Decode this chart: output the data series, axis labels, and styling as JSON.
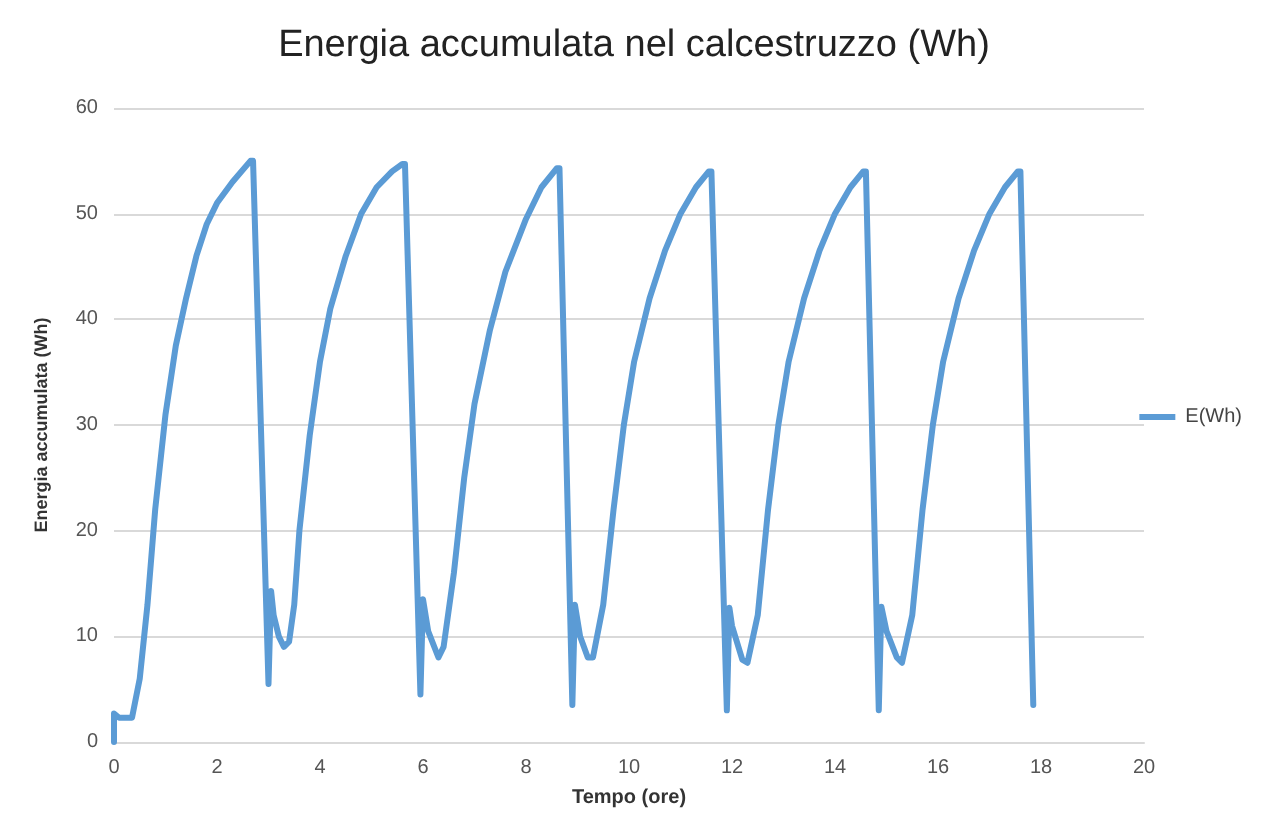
{
  "chart_data": {
    "type": "line",
    "title": "Energia accumulata nel calcestruzzo (Wh)",
    "xlabel": "Tempo (ore)",
    "ylabel": "Energia accumulata (Wh)",
    "xlim": [
      0,
      20
    ],
    "xticks": [
      0,
      2,
      4,
      6,
      8,
      10,
      12,
      14,
      16,
      18,
      20
    ],
    "ylim": [
      0,
      60
    ],
    "yticks": [
      0,
      10,
      20,
      30,
      40,
      50,
      60
    ],
    "grid": "y",
    "legend": "right",
    "marker": "none",
    "line_style": "solid",
    "series": [
      {
        "name": "E(Wh)",
        "color": "#5b9bd5",
        "x": [
          0,
          0,
          0.1,
          0.35,
          0.5,
          0.65,
          0.8,
          1.0,
          1.2,
          1.4,
          1.6,
          1.8,
          2.0,
          2.3,
          2.65,
          2.7,
          3.0,
          3.05,
          3.1,
          3.2,
          3.3,
          3.4,
          3.5,
          3.6,
          3.8,
          4.0,
          4.2,
          4.5,
          4.8,
          5.1,
          5.4,
          5.6,
          5.65,
          5.95,
          6.0,
          6.1,
          6.3,
          6.4,
          6.6,
          6.8,
          7.0,
          7.3,
          7.6,
          8.0,
          8.3,
          8.6,
          8.65,
          8.9,
          8.95,
          9.05,
          9.2,
          9.3,
          9.5,
          9.7,
          9.9,
          10.1,
          10.4,
          10.7,
          11.0,
          11.3,
          11.55,
          11.6,
          11.9,
          11.95,
          12.0,
          12.2,
          12.3,
          12.5,
          12.7,
          12.9,
          13.1,
          13.4,
          13.7,
          14.0,
          14.3,
          14.55,
          14.6,
          14.85,
          14.9,
          15.0,
          15.2,
          15.3,
          15.5,
          15.7,
          15.9,
          16.1,
          16.4,
          16.7,
          17.0,
          17.3,
          17.55,
          17.6,
          17.85
        ],
        "values": [
          0,
          2.7,
          2.3,
          2.3,
          6,
          13,
          22,
          31,
          37.5,
          42,
          46,
          49,
          51,
          53,
          55,
          55,
          5.5,
          14.3,
          12,
          10,
          9,
          9.5,
          13,
          20,
          29,
          36,
          41,
          46,
          50,
          52.5,
          54,
          54.7,
          54.7,
          4.5,
          13.5,
          10.5,
          8,
          9,
          16,
          25,
          32,
          39,
          44.5,
          49.5,
          52.5,
          54.3,
          54.3,
          3.5,
          13,
          10,
          8,
          8,
          13,
          22,
          30,
          36,
          42,
          46.5,
          50,
          52.5,
          54,
          54,
          3,
          12.7,
          11,
          7.8,
          7.5,
          12,
          22,
          30,
          36,
          42,
          46.5,
          50,
          52.5,
          54,
          54,
          3,
          12.8,
          10.5,
          8,
          7.5,
          12,
          22,
          30,
          36,
          42,
          46.5,
          50,
          52.5,
          54,
          54,
          3.5
        ]
      }
    ]
  }
}
